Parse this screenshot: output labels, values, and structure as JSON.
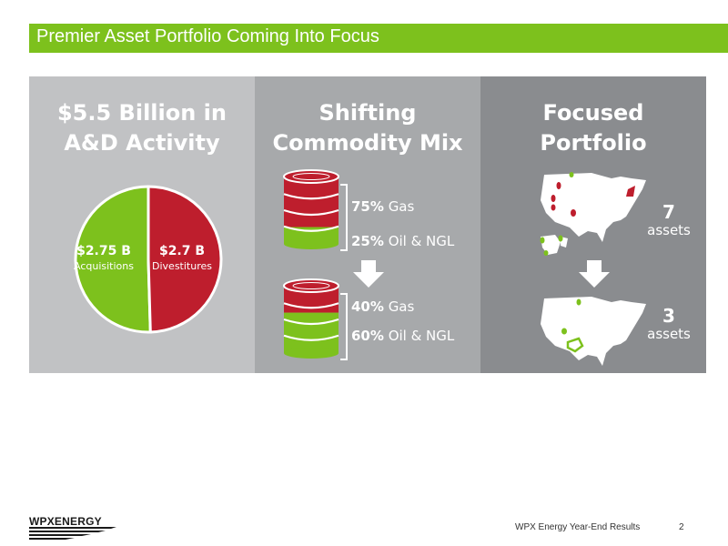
{
  "title": "Premier Asset Portfolio Coming Into Focus",
  "panels": {
    "activity": {
      "heading_line1": "$5.5 Billion in",
      "heading_line2": "A&D Activity",
      "pie": {
        "slices": [
          {
            "value": "$2.75 B",
            "label": "Acquisitions",
            "amount": 2.75,
            "color": "#7dc11d"
          },
          {
            "value": "$2.7 B",
            "label": "Divestitures",
            "amount": 2.7,
            "color": "#be1e2d"
          }
        ]
      }
    },
    "mix": {
      "heading_line1": "Shifting",
      "heading_line2": "Commodity Mix",
      "before": {
        "gas_pct": "75%",
        "gas_label": "Gas",
        "oil_pct": "25%",
        "oil_label": "Oil & NGL",
        "gas_fraction": 0.75
      },
      "after": {
        "gas_pct": "40%",
        "gas_label": "Gas",
        "oil_pct": "60%",
        "oil_label": "Oil & NGL",
        "gas_fraction": 0.4
      }
    },
    "portfolio": {
      "heading_line1": "Focused",
      "heading_line2": "Portfolio",
      "before": {
        "count": "7",
        "label": "assets"
      },
      "after": {
        "count": "3",
        "label": "assets"
      }
    }
  },
  "colors": {
    "accent_green": "#7dc11d",
    "accent_red": "#be1e2d"
  },
  "footer": {
    "logo": "WPXENERGY",
    "caption": "WPX Energy Year-End Results",
    "page": "2"
  }
}
